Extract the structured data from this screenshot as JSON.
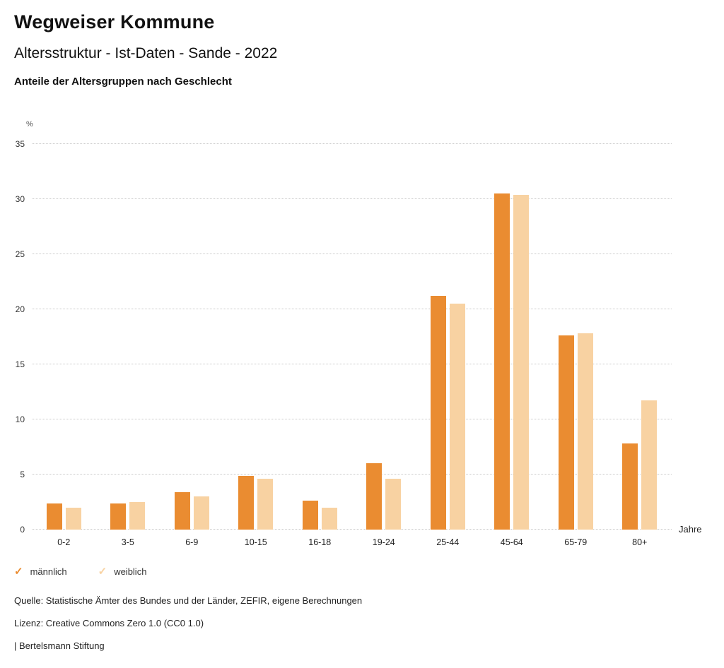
{
  "header": {
    "title": "Wegweiser Kommune",
    "subtitle": "Altersstruktur - Ist-Daten - Sande - 2022",
    "caption": "Anteile der Altersgruppen nach Geschlecht"
  },
  "chart_data": {
    "type": "bar",
    "categories": [
      "0-2",
      "3-5",
      "6-9",
      "10-15",
      "16-18",
      "19-24",
      "25-44",
      "45-64",
      "65-79",
      "80+"
    ],
    "series": [
      {
        "name": "männlich",
        "color": "#ea8c31",
        "values": [
          2.4,
          2.4,
          3.4,
          4.9,
          2.6,
          6.0,
          21.2,
          30.5,
          17.6,
          7.8
        ]
      },
      {
        "name": "weiblich",
        "color": "#f8d2a2",
        "values": [
          2.0,
          2.5,
          3.0,
          4.6,
          2.0,
          4.6,
          20.5,
          30.4,
          17.8,
          11.7
        ]
      }
    ],
    "title": "Altersstruktur - Ist-Daten - Sande - 2022",
    "ylabel": "%",
    "xlabel": "Jahre",
    "ylim": [
      0,
      35
    ],
    "yticks": [
      0,
      5,
      10,
      15,
      20,
      25,
      30,
      35
    ],
    "grid": true,
    "legend_position": "bottom"
  },
  "footer": {
    "source": "Quelle: Statistische Ämter des Bundes und der Länder, ZEFIR, eigene Berechnungen",
    "license": "Lizenz: Creative Commons Zero 1.0 (CC0 1.0)",
    "attribution": "| Bertelsmann Stiftung"
  }
}
